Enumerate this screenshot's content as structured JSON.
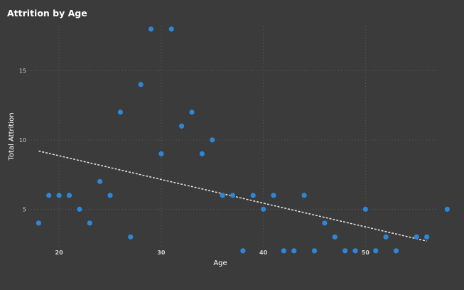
{
  "chart_data": {
    "type": "scatter",
    "title": "Attrition by Age",
    "xlabel": "Age",
    "ylabel": "Total Attrition",
    "xlim": [
      17,
      57
    ],
    "ylim": [
      2.3,
      18.2
    ],
    "x_ticks": [
      20,
      30,
      40,
      50
    ],
    "y_ticks": [
      5,
      10,
      15
    ],
    "grid": true,
    "trendline": {
      "style": "dashed",
      "x": [
        18,
        56
      ],
      "y": [
        9.2,
        2.7
      ]
    },
    "points": [
      {
        "x": 18,
        "y": 4
      },
      {
        "x": 19,
        "y": 6
      },
      {
        "x": 20,
        "y": 6
      },
      {
        "x": 21,
        "y": 6
      },
      {
        "x": 22,
        "y": 5
      },
      {
        "x": 23,
        "y": 4
      },
      {
        "x": 24,
        "y": 7
      },
      {
        "x": 25,
        "y": 6
      },
      {
        "x": 26,
        "y": 12
      },
      {
        "x": 27,
        "y": 3
      },
      {
        "x": 28,
        "y": 14
      },
      {
        "x": 29,
        "y": 18
      },
      {
        "x": 30,
        "y": 9
      },
      {
        "x": 31,
        "y": 18
      },
      {
        "x": 32,
        "y": 11
      },
      {
        "x": 33,
        "y": 12
      },
      {
        "x": 34,
        "y": 9
      },
      {
        "x": 35,
        "y": 10
      },
      {
        "x": 36,
        "y": 6
      },
      {
        "x": 37,
        "y": 6
      },
      {
        "x": 38,
        "y": 2
      },
      {
        "x": 39,
        "y": 6
      },
      {
        "x": 40,
        "y": 5
      },
      {
        "x": 41,
        "y": 6
      },
      {
        "x": 42,
        "y": 2
      },
      {
        "x": 43,
        "y": 2
      },
      {
        "x": 44,
        "y": 6
      },
      {
        "x": 45,
        "y": 2
      },
      {
        "x": 46,
        "y": 4
      },
      {
        "x": 47,
        "y": 3
      },
      {
        "x": 48,
        "y": 2
      },
      {
        "x": 49,
        "y": 2
      },
      {
        "x": 50,
        "y": 5
      },
      {
        "x": 51,
        "y": 2
      },
      {
        "x": 52,
        "y": 3
      },
      {
        "x": 53,
        "y": 2
      },
      {
        "x": 55,
        "y": 3
      },
      {
        "x": 56,
        "y": 3
      },
      {
        "x": 58,
        "y": 5
      }
    ],
    "colors": {
      "background": "#3b3b3b",
      "point": "#2e86d6",
      "trendline": "#e6e6e6",
      "grid": "#5a5a5a",
      "text": "#ffffff",
      "tick_text": "#d0d0d0"
    }
  }
}
